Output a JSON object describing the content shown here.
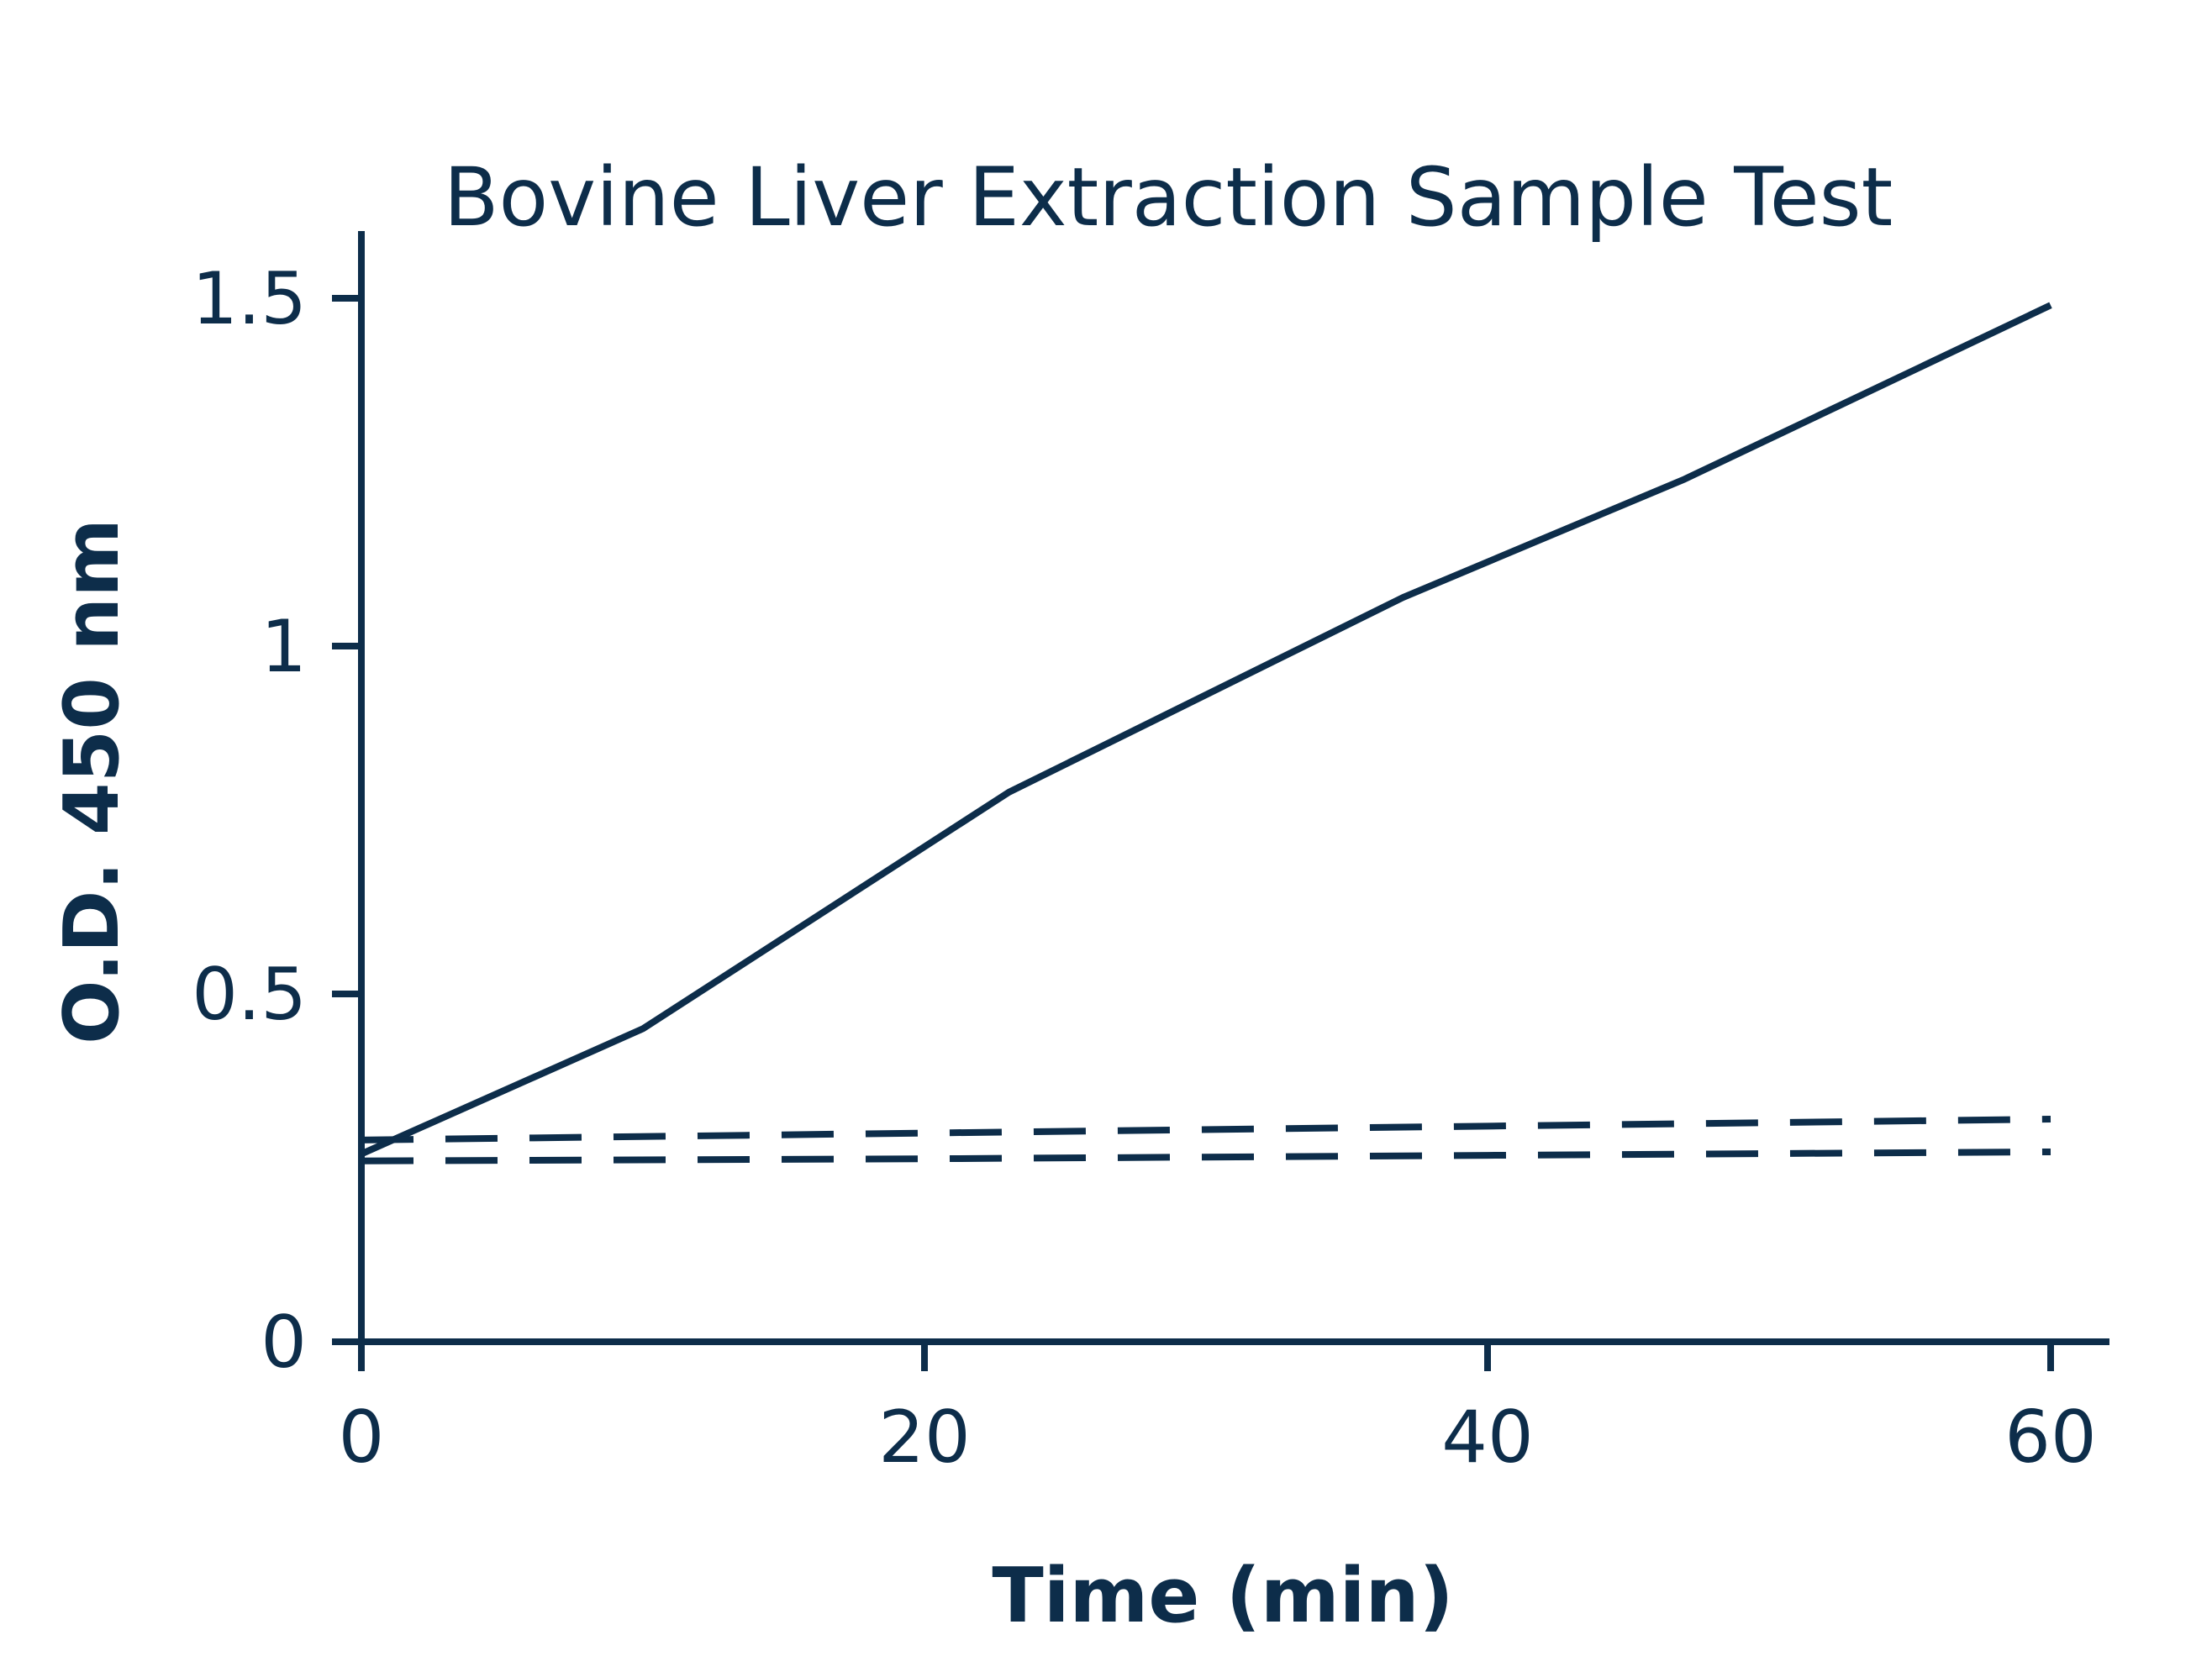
{
  "colors": {
    "ink": "#0d2d4a",
    "background": "#ffffff"
  },
  "chart_data": {
    "type": "line",
    "title": "Bovine Liver Extraction Sample Test",
    "xlabel": "Time (min)",
    "ylabel": "O.D. 450 nm",
    "xlim": [
      0,
      62
    ],
    "ylim": [
      0,
      1.6
    ],
    "x_ticks": [
      0,
      20,
      40,
      60
    ],
    "x_tick_labels": [
      "0",
      "20",
      "40",
      "60"
    ],
    "y_ticks": [
      0,
      0.5,
      1,
      1.5
    ],
    "y_tick_labels": [
      "0",
      "0.5",
      "1",
      "1.5"
    ],
    "grid": false,
    "legend": "none",
    "series": [
      {
        "line_style": "solid",
        "points": [
          [
            0,
            0.27
          ],
          [
            10,
            0.45
          ],
          [
            23,
            0.79
          ],
          [
            37,
            1.07
          ],
          [
            47,
            1.24
          ],
          [
            60,
            1.49
          ]
        ]
      },
      {
        "line_style": "dashed",
        "points": [
          [
            0,
            0.29
          ],
          [
            20,
            0.3
          ],
          [
            40,
            0.31
          ],
          [
            60,
            0.32
          ]
        ]
      },
      {
        "line_style": "dashed",
        "points": [
          [
            0,
            0.26
          ],
          [
            20,
            0.263
          ],
          [
            40,
            0.268
          ],
          [
            60,
            0.273
          ]
        ]
      }
    ]
  }
}
